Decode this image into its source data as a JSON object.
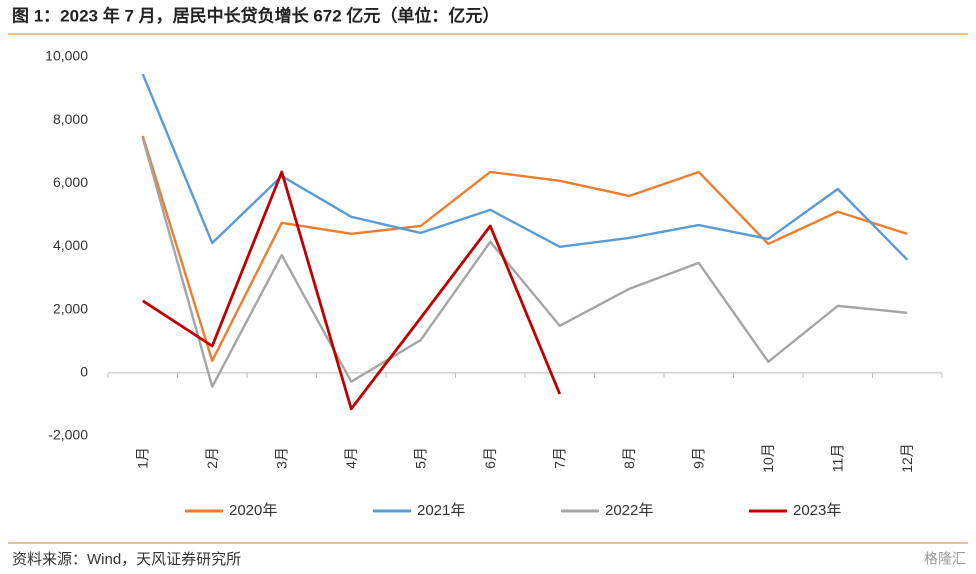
{
  "chart_data": {
    "type": "line",
    "title": "图 1：2023 年 7 月，居民中长贷负增长 672 亿元（单位：亿元）",
    "source": "资料来源：Wind，天风证券研究所",
    "watermark": "格隆汇",
    "categories": [
      "1月",
      "2月",
      "3月",
      "4月",
      "5月",
      "6月",
      "7月",
      "8月",
      "9月",
      "10月",
      "11月",
      "12月"
    ],
    "series": [
      {
        "name": "2020年",
        "color": "#ed7d31",
        "values": [
          7500,
          380,
          4750,
          4400,
          4650,
          6360,
          6080,
          5600,
          6360,
          4080,
          5100,
          4400
        ]
      },
      {
        "name": "2021年",
        "color": "#5b9bd5",
        "values": [
          9460,
          4110,
          6230,
          4940,
          4430,
          5160,
          3990,
          4270,
          4680,
          4240,
          5820,
          3580
        ]
      },
      {
        "name": "2022年",
        "color": "#a5a5a5",
        "values": [
          7440,
          -440,
          3730,
          -280,
          1040,
          4150,
          1490,
          2660,
          3480,
          350,
          2120,
          1900
        ]
      },
      {
        "name": "2023年",
        "color": "#c00000",
        "values": [
          2280,
          850,
          6360,
          -1140,
          1740,
          4650,
          -670,
          null,
          null,
          null,
          null,
          null
        ]
      }
    ],
    "ylim": [
      -2000,
      10000
    ],
    "yticks": [
      {
        "value": -2000,
        "label": "-2,000"
      },
      0,
      {
        "value": 2000,
        "label": "2,000"
      },
      {
        "value": 4000,
        "label": "4,000"
      },
      {
        "value": 6000,
        "label": "6,000"
      },
      {
        "value": 8000,
        "label": "8,000"
      },
      {
        "value": 10000,
        "label": "10,000"
      }
    ],
    "grid": false,
    "legend": "bottom"
  }
}
